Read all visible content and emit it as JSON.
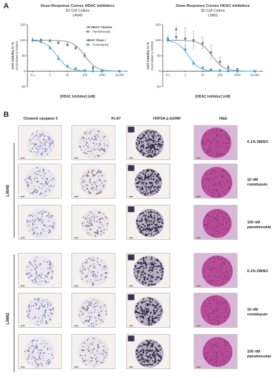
{
  "panel_a": {
    "letter": "A",
    "charts": [
      {
        "title": "Dose-Response Curves HDAC Inhibitors",
        "subtitle": "3D Cell Culture",
        "cell_line": "L4040",
        "ylabel": "Cell Viability in %",
        "ylabel_sub": "(Normalized to DMSO)",
        "xlabel": "[HDAC Inhibitor] (nM)",
        "y_ticks": [
          "150",
          "100",
          "50",
          "0",
          "-50"
        ],
        "x_ticks": [
          "0.1",
          "1",
          "10",
          "100",
          "1000",
          "10,000"
        ],
        "legend": {
          "group1_title": "All HDAC Classes",
          "group1_item": "Panobinostat",
          "group2_title": "HDAC Class I",
          "group2_item": "Romidepsin"
        }
      },
      {
        "title": "Dose-Response Curves HDAC Inhibitors",
        "subtitle": "3D Cell Culture",
        "cell_line": "L5862",
        "ylabel": "Cell Viability in %",
        "ylabel_sub": "(Normalized to DMSO)",
        "xlabel": "[HDAC Inhibitor] (nM)",
        "y_ticks": [
          "150",
          "100",
          "50",
          "0",
          "-50"
        ],
        "x_ticks": [
          "0.1",
          "1",
          "10",
          "100",
          "1000",
          "10,000"
        ]
      }
    ]
  },
  "chart_data": [
    {
      "type": "scatter",
      "title": "Dose-Response Curves HDAC Inhibitors",
      "subtitle": "3D Cell Culture L4040",
      "xlabel": "[HDAC Inhibitor] (nM)",
      "ylabel": "Cell Viability in % (Normalized to DMSO)",
      "x_scale": "log",
      "xlim": [
        0.05,
        30000
      ],
      "ylim": [
        -50,
        150
      ],
      "series": [
        {
          "name": "Panobinostat",
          "color": "#808080",
          "x": [
            0.1,
            0.3,
            1,
            3,
            10,
            30,
            100,
            300,
            1000,
            10000
          ],
          "y": [
            100,
            100,
            98,
            92,
            85,
            75,
            50,
            10,
            2,
            0
          ],
          "err": [
            8,
            5,
            5,
            6,
            6,
            8,
            10,
            6,
            3,
            2
          ]
        },
        {
          "name": "Romidepsin",
          "color": "#4aa3d8",
          "x": [
            0.1,
            0.3,
            1,
            3,
            10,
            30,
            100,
            300,
            1000,
            10000
          ],
          "y": [
            100,
            95,
            75,
            40,
            15,
            8,
            2,
            0,
            0,
            0
          ],
          "err": [
            8,
            6,
            8,
            10,
            6,
            4,
            2,
            1,
            1,
            1
          ]
        }
      ]
    },
    {
      "type": "scatter",
      "title": "Dose-Response Curves HDAC Inhibitors",
      "subtitle": "3D Cell Culture L5862",
      "xlabel": "[HDAC Inhibitor] (nM)",
      "ylabel": "Cell Viability in % (Normalized to DMSO)",
      "x_scale": "log",
      "xlim": [
        0.05,
        30000
      ],
      "ylim": [
        -50,
        150
      ],
      "series": [
        {
          "name": "Panobinostat",
          "color": "#808080",
          "x": [
            0.1,
            0.3,
            1,
            3,
            10,
            30,
            100,
            300,
            1000,
            10000
          ],
          "y": [
            100,
            110,
            105,
            100,
            90,
            60,
            30,
            12,
            5,
            0
          ],
          "err": [
            10,
            12,
            35,
            30,
            20,
            25,
            15,
            8,
            4,
            2
          ]
        },
        {
          "name": "Romidepsin",
          "color": "#4aa3d8",
          "x": [
            0.1,
            0.3,
            1,
            3,
            10,
            30,
            100,
            300,
            1000,
            10000
          ],
          "y": [
            105,
            135,
            70,
            25,
            10,
            5,
            2,
            0,
            0,
            0
          ],
          "err": [
            8,
            10,
            12,
            10,
            5,
            3,
            2,
            1,
            1,
            1
          ]
        }
      ]
    }
  ],
  "panel_b": {
    "letter": "B",
    "columns": [
      "Cleaved caspase 3",
      "Ki-67",
      "H3F3A p.G34W",
      "H&E"
    ],
    "cohorts": [
      {
        "name": "L4040",
        "rows": [
          {
            "line1": "0.1% DMSO",
            "line2": ""
          },
          {
            "line1": "10 nM",
            "line2": "romidepsin"
          },
          {
            "line1": "100 nM",
            "line2": "panobinostat"
          }
        ]
      },
      {
        "name": "L5862",
        "rows": [
          {
            "line1": "0.1% DMSO",
            "line2": ""
          },
          {
            "line1": "10 nM",
            "line2": "romidepsin"
          },
          {
            "line1": "100 nM",
            "line2": "panobinostat"
          }
        ]
      }
    ],
    "stain_colors": {
      "ihc_background": "#f4f1ee",
      "hematoxylin": "#6f7ab4",
      "dab_brown": "#7a4a2a",
      "dense_nuclei": "#2a2238",
      "he_pink": "#c9549e",
      "he_background": "#d8b8d6"
    }
  }
}
